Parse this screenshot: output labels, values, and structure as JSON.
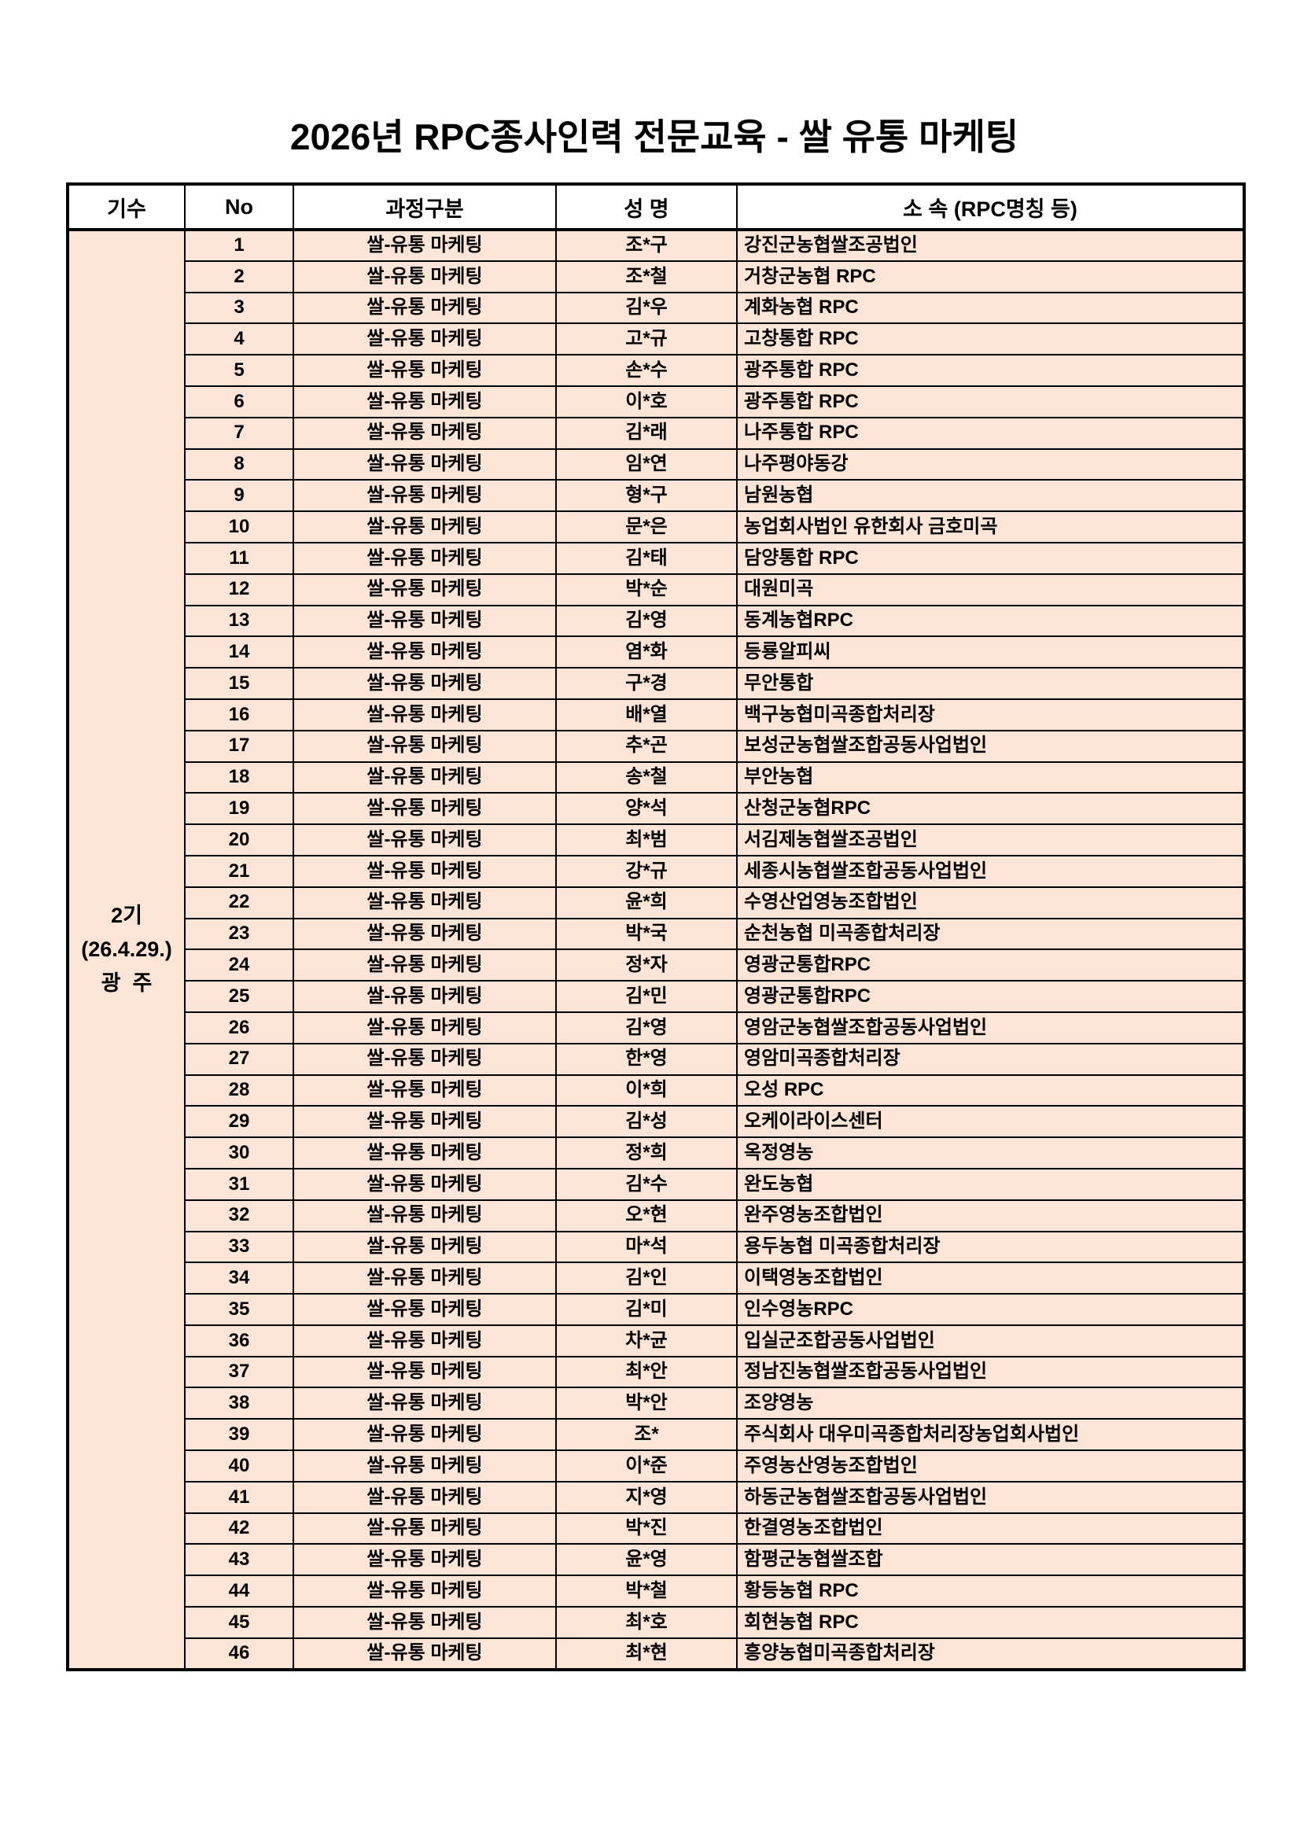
{
  "title": "2026년 RPC종사인력 전문교육 - 쌀 유통 마케팅",
  "cohort": {
    "text": "2기\n(26.4.29.)\n광  주"
  },
  "colors": {
    "cell_background": "#FCE4D6",
    "header_background": "#FFFFFF",
    "border": "#000000"
  },
  "table": {
    "headers": [
      "기수",
      "No",
      "과정구분",
      "성 명",
      "소 속 (RPC명칭 등)"
    ],
    "rows": [
      {
        "no": "1",
        "course": "쌀-유통 마케팅",
        "name": "조*구",
        "org": "강진군농협쌀조공법인"
      },
      {
        "no": "2",
        "course": "쌀-유통 마케팅",
        "name": "조*철",
        "org": "거창군농협 RPC"
      },
      {
        "no": "3",
        "course": "쌀-유통 마케팅",
        "name": "김*우",
        "org": "계화농협 RPC"
      },
      {
        "no": "4",
        "course": "쌀-유통 마케팅",
        "name": "고*규",
        "org": "고창통합 RPC"
      },
      {
        "no": "5",
        "course": "쌀-유통 마케팅",
        "name": "손*수",
        "org": "광주통합 RPC"
      },
      {
        "no": "6",
        "course": "쌀-유통 마케팅",
        "name": "이*호",
        "org": "광주통합 RPC"
      },
      {
        "no": "7",
        "course": "쌀-유통 마케팅",
        "name": "김*래",
        "org": "나주통합 RPC"
      },
      {
        "no": "8",
        "course": "쌀-유통 마케팅",
        "name": "임*연",
        "org": "나주평야동강"
      },
      {
        "no": "9",
        "course": "쌀-유통 마케팅",
        "name": "형*구",
        "org": "남원농협"
      },
      {
        "no": "10",
        "course": "쌀-유통 마케팅",
        "name": "문*은",
        "org": "농업회사법인 유한회사 금호미곡"
      },
      {
        "no": "11",
        "course": "쌀-유통 마케팅",
        "name": "김*태",
        "org": "담양통합 RPC"
      },
      {
        "no": "12",
        "course": "쌀-유통 마케팅",
        "name": "박*순",
        "org": "대원미곡"
      },
      {
        "no": "13",
        "course": "쌀-유통 마케팅",
        "name": "김*영",
        "org": "동계농협RPC"
      },
      {
        "no": "14",
        "course": "쌀-유통 마케팅",
        "name": "염*화",
        "org": "등룡알피씨"
      },
      {
        "no": "15",
        "course": "쌀-유통 마케팅",
        "name": "구*경",
        "org": "무안통합"
      },
      {
        "no": "16",
        "course": "쌀-유통 마케팅",
        "name": "배*열",
        "org": "백구농협미곡종합처리장"
      },
      {
        "no": "17",
        "course": "쌀-유통 마케팅",
        "name": "추*곤",
        "org": "보성군농협쌀조합공동사업법인"
      },
      {
        "no": "18",
        "course": "쌀-유통 마케팅",
        "name": "송*철",
        "org": "부안농협"
      },
      {
        "no": "19",
        "course": "쌀-유통 마케팅",
        "name": "양*석",
        "org": "산청군농협RPC"
      },
      {
        "no": "20",
        "course": "쌀-유통 마케팅",
        "name": "최*범",
        "org": "서김제농협쌀조공법인"
      },
      {
        "no": "21",
        "course": "쌀-유통 마케팅",
        "name": "강*규",
        "org": "세종시농협쌀조합공동사업법인"
      },
      {
        "no": "22",
        "course": "쌀-유통 마케팅",
        "name": "윤*희",
        "org": "수영산업영농조합법인"
      },
      {
        "no": "23",
        "course": "쌀-유통 마케팅",
        "name": "박*국",
        "org": "순천농협 미곡종합처리장"
      },
      {
        "no": "24",
        "course": "쌀-유통 마케팅",
        "name": "정*자",
        "org": "영광군통합RPC"
      },
      {
        "no": "25",
        "course": "쌀-유통 마케팅",
        "name": "김*민",
        "org": "영광군통합RPC"
      },
      {
        "no": "26",
        "course": "쌀-유통 마케팅",
        "name": "김*영",
        "org": "영암군농협쌀조합공동사업법인"
      },
      {
        "no": "27",
        "course": "쌀-유통 마케팅",
        "name": "한*영",
        "org": "영암미곡종합처리장"
      },
      {
        "no": "28",
        "course": "쌀-유통 마케팅",
        "name": "이*희",
        "org": "오성 RPC"
      },
      {
        "no": "29",
        "course": "쌀-유통 마케팅",
        "name": "김*성",
        "org": "오케이라이스센터"
      },
      {
        "no": "30",
        "course": "쌀-유통 마케팅",
        "name": "정*희",
        "org": "옥정영농"
      },
      {
        "no": "31",
        "course": "쌀-유통 마케팅",
        "name": "김*수",
        "org": "완도농협"
      },
      {
        "no": "32",
        "course": "쌀-유통 마케팅",
        "name": "오*현",
        "org": "완주영농조합법인"
      },
      {
        "no": "33",
        "course": "쌀-유통 마케팅",
        "name": "마*석",
        "org": "용두농협 미곡종합처리장"
      },
      {
        "no": "34",
        "course": "쌀-유통 마케팅",
        "name": "김*인",
        "org": "이택영농조합법인"
      },
      {
        "no": "35",
        "course": "쌀-유통 마케팅",
        "name": "김*미",
        "org": "인수영농RPC"
      },
      {
        "no": "36",
        "course": "쌀-유통 마케팅",
        "name": "차*균",
        "org": "입실군조합공동사업법인"
      },
      {
        "no": "37",
        "course": "쌀-유통 마케팅",
        "name": "최*안",
        "org": "정남진농협쌀조합공동사업법인"
      },
      {
        "no": "38",
        "course": "쌀-유통 마케팅",
        "name": "박*안",
        "org": "조양영농"
      },
      {
        "no": "39",
        "course": "쌀-유통 마케팅",
        "name": "조*",
        "org": "주식회사 대우미곡종합처리장농업회사법인"
      },
      {
        "no": "40",
        "course": "쌀-유통 마케팅",
        "name": "이*준",
        "org": "주영농산영농조합법인"
      },
      {
        "no": "41",
        "course": "쌀-유통 마케팅",
        "name": "지*영",
        "org": "하동군농협쌀조합공동사업법인"
      },
      {
        "no": "42",
        "course": "쌀-유통 마케팅",
        "name": "박*진",
        "org": "한결영농조합법인"
      },
      {
        "no": "43",
        "course": "쌀-유통 마케팅",
        "name": "윤*영",
        "org": "함평군농협쌀조합"
      },
      {
        "no": "44",
        "course": "쌀-유통 마케팅",
        "name": "박*철",
        "org": "황등농협 RPC"
      },
      {
        "no": "45",
        "course": "쌀-유통 마케팅",
        "name": "최*호",
        "org": "회현농협 RPC"
      },
      {
        "no": "46",
        "course": "쌀-유통 마케팅",
        "name": "최*현",
        "org": "흥양농협미곡종합처리장"
      }
    ]
  }
}
